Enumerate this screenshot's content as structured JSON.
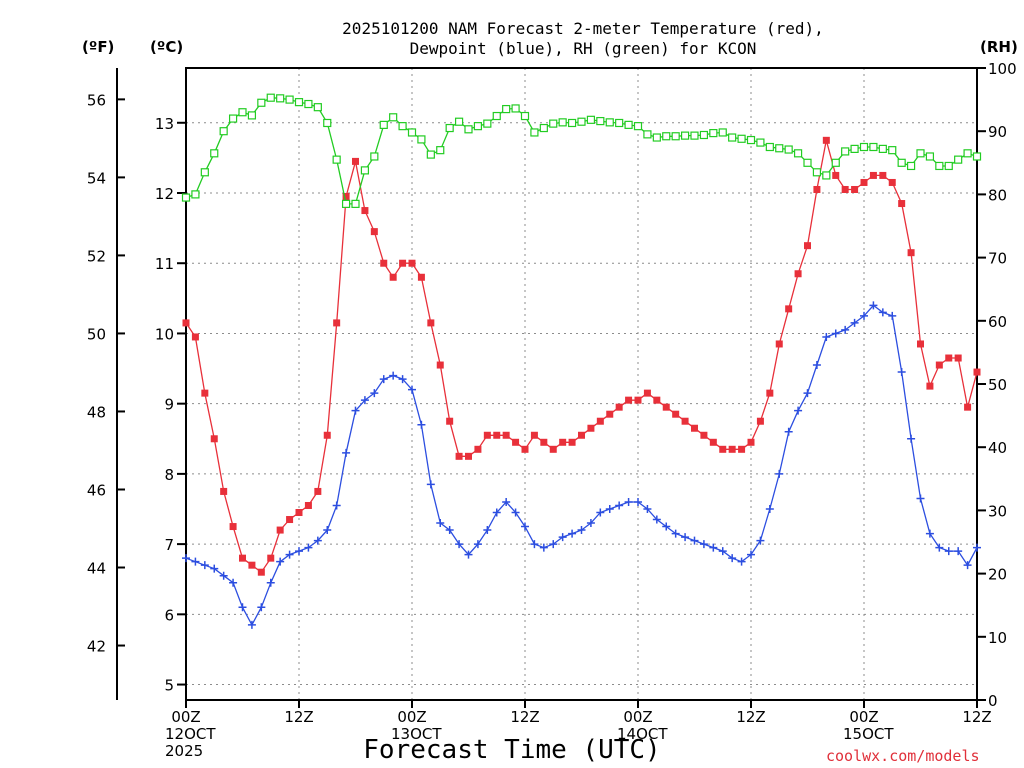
{
  "chart_data": {
    "type": "line",
    "title_line1": "2025101200 NAM Forecast 2-meter Temperature (red),",
    "title_line2": "Dewpoint (blue), RH (green) for KCON",
    "xlabel": "Forecast Time (UTC)",
    "credit": "coolwx.com/models",
    "unit_f": "(ºF)",
    "unit_c": "(ºC)",
    "unit_rh": "(RH)",
    "x_range_hours": [
      0,
      84
    ],
    "x_tick_hours": [
      0,
      12,
      24,
      36,
      48,
      60,
      72,
      84
    ],
    "x_ticks": [
      {
        "h": 0,
        "l1": "00Z",
        "l2": "12OCT",
        "l3": "2025"
      },
      {
        "h": 12,
        "l1": "12Z",
        "l2": "",
        "l3": ""
      },
      {
        "h": 24,
        "l1": "00Z",
        "l2": "13OCT",
        "l3": ""
      },
      {
        "h": 36,
        "l1": "12Z",
        "l2": "",
        "l3": ""
      },
      {
        "h": 48,
        "l1": "00Z",
        "l2": "14OCT",
        "l3": ""
      },
      {
        "h": 60,
        "l1": "12Z",
        "l2": "",
        "l3": ""
      },
      {
        "h": 72,
        "l1": "00Z",
        "l2": "15OCT",
        "l3": ""
      },
      {
        "h": 84,
        "l1": "12Z",
        "l2": "",
        "l3": ""
      }
    ],
    "y_c_range": [
      4.78,
      13.78
    ],
    "y_c_ticks": [
      5,
      6,
      7,
      8,
      9,
      10,
      11,
      12,
      13
    ],
    "y_f_ticks": [
      42,
      44,
      46,
      48,
      50,
      52,
      54,
      56
    ],
    "y_rh_range": [
      0,
      100
    ],
    "y_rh_ticks": [
      0,
      10,
      20,
      30,
      40,
      50,
      60,
      70,
      80,
      90,
      100
    ],
    "series": [
      {
        "name": "Temperature",
        "color": "#e8303a",
        "marker": "filled-square",
        "values": [
          10.15,
          9.95,
          9.15,
          8.5,
          7.75,
          7.25,
          6.8,
          6.7,
          6.6,
          6.8,
          7.2,
          7.35,
          7.45,
          7.55,
          7.75,
          8.55,
          10.15,
          11.95,
          12.45,
          11.75,
          11.45,
          11.0,
          10.8,
          11.0,
          11.0,
          10.8,
          10.15,
          9.55,
          8.75,
          8.25,
          8.25,
          8.35,
          8.55,
          8.55,
          8.55,
          8.45,
          8.35,
          8.55,
          8.45,
          8.35,
          8.45,
          8.45,
          8.55,
          8.65,
          8.75,
          8.85,
          8.95,
          9.05,
          9.05,
          9.15,
          9.05,
          8.95,
          8.85,
          8.75,
          8.65,
          8.55,
          8.45,
          8.35,
          8.35,
          8.35,
          8.45,
          8.75,
          9.15,
          9.85,
          10.35,
          10.85,
          11.25,
          12.05,
          12.75,
          12.25,
          12.05,
          12.05,
          12.15,
          12.25,
          12.25,
          12.15,
          11.85,
          11.15,
          9.85,
          9.25,
          9.55,
          9.65,
          9.65,
          8.95,
          9.45
        ]
      },
      {
        "name": "Dewpoint",
        "color": "#2c4ee0",
        "marker": "plus",
        "values": [
          6.8,
          6.75,
          6.7,
          6.65,
          6.55,
          6.45,
          6.1,
          5.85,
          6.1,
          6.45,
          6.75,
          6.85,
          6.9,
          6.95,
          7.05,
          7.2,
          7.55,
          8.3,
          8.9,
          9.05,
          9.15,
          9.35,
          9.4,
          9.35,
          9.2,
          8.7,
          7.85,
          7.3,
          7.2,
          7.0,
          6.85,
          7.0,
          7.2,
          7.45,
          7.6,
          7.45,
          7.25,
          7.0,
          6.95,
          7.0,
          7.1,
          7.15,
          7.2,
          7.3,
          7.45,
          7.5,
          7.55,
          7.6,
          7.6,
          7.5,
          7.35,
          7.25,
          7.15,
          7.1,
          7.05,
          7.0,
          6.95,
          6.9,
          6.8,
          6.75,
          6.85,
          7.05,
          7.5,
          8.0,
          8.6,
          8.9,
          9.15,
          9.55,
          9.95,
          10.0,
          10.05,
          10.15,
          10.25,
          10.4,
          10.3,
          10.25,
          9.45,
          8.5,
          7.65,
          7.15,
          6.95,
          6.9,
          6.9,
          6.7,
          6.95
        ]
      },
      {
        "name": "RH",
        "color": "#22cc22",
        "marker": "open-square",
        "axis": "rh",
        "values": [
          79.5,
          80.0,
          83.5,
          86.5,
          90.0,
          92.0,
          93.0,
          92.5,
          94.5,
          95.3,
          95.2,
          95.0,
          94.6,
          94.3,
          93.8,
          91.3,
          85.5,
          78.5,
          78.5,
          83.8,
          86.0,
          91.0,
          92.2,
          90.8,
          89.8,
          88.7,
          86.3,
          87.0,
          90.5,
          91.5,
          90.3,
          90.8,
          91.2,
          92.4,
          93.5,
          93.6,
          92.4,
          89.8,
          90.5,
          91.2,
          91.4,
          91.3,
          91.5,
          91.8,
          91.6,
          91.4,
          91.3,
          91.0,
          90.8,
          89.5,
          89.0,
          89.2,
          89.2,
          89.3,
          89.3,
          89.4,
          89.7,
          89.8,
          89.0,
          88.8,
          88.6,
          88.2,
          87.5,
          87.3,
          87.1,
          86.5,
          85.0,
          83.5,
          83.0,
          85.0,
          86.8,
          87.2,
          87.5,
          87.5,
          87.2,
          87.0,
          85.0,
          84.5,
          86.5,
          86.0,
          84.5,
          84.5,
          85.5,
          86.5,
          86.0
        ]
      }
    ]
  }
}
